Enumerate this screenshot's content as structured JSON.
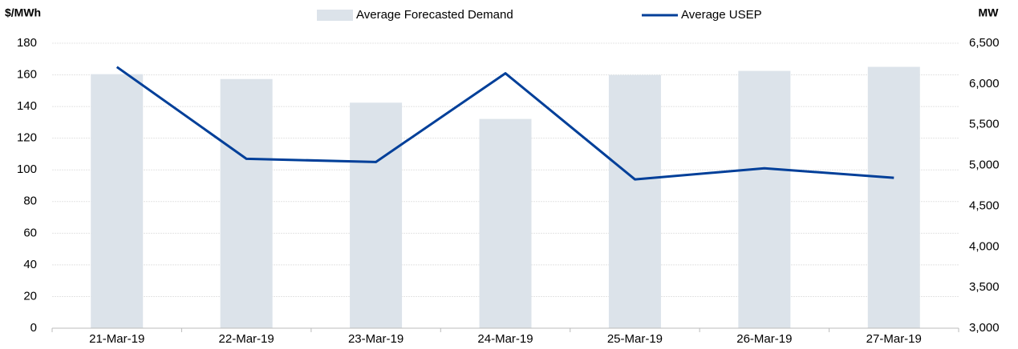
{
  "chart_data": {
    "type": "combo",
    "y_label": "$/MWh",
    "y2_label": "MW",
    "categories": [
      "21-Mar-19",
      "22-Mar-19",
      "23-Mar-19",
      "24-Mar-19",
      "25-Mar-19",
      "26-Mar-19",
      "27-Mar-19"
    ],
    "series": [
      {
        "name": "Average Forecasted Demand",
        "type": "bar",
        "axis": "y2",
        "color": "#dce3ea",
        "values": [
          6120,
          6060,
          5770,
          5570,
          6110,
          6160,
          6210
        ]
      },
      {
        "name": "Average USEP",
        "type": "line",
        "axis": "y",
        "color": "#003f99",
        "values": [
          165,
          107,
          105,
          161,
          94,
          101,
          95
        ]
      }
    ],
    "ylim": [
      0,
      180
    ],
    "yticks": [
      0,
      20,
      40,
      60,
      80,
      100,
      120,
      140,
      160,
      180
    ],
    "y2lim": [
      3000,
      6500
    ],
    "y2ticks": [
      {
        "value": 3000,
        "label": "3,000"
      },
      {
        "value": 3500,
        "label": "3,500"
      },
      {
        "value": 4000,
        "label": "4,000"
      },
      {
        "value": 4500,
        "label": "4,500"
      },
      {
        "value": 5000,
        "label": "5,000"
      },
      {
        "value": 5500,
        "label": "5,500"
      },
      {
        "value": 6000,
        "label": "6,000"
      },
      {
        "value": 6500,
        "label": "6,500"
      }
    ],
    "grid": true,
    "legend": "top"
  }
}
